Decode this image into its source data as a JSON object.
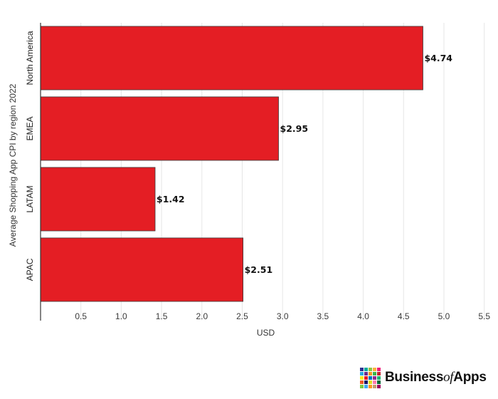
{
  "chart_data": {
    "type": "bar",
    "orientation": "horizontal",
    "categories": [
      "North America",
      "EMEA",
      "LATAM",
      "APAC"
    ],
    "values": [
      4.74,
      2.95,
      1.42,
      2.51
    ],
    "value_labels": [
      "$4.74",
      "$2.95",
      "$1.42",
      "$2.51"
    ],
    "title": "",
    "xlabel": "USD",
    "ylabel": "Average Shopping App CPI by region 2022",
    "xlim": [
      0,
      5.6
    ],
    "x_ticks": [
      0.5,
      1.0,
      1.5,
      2.0,
      2.5,
      3.0,
      3.5,
      4.0,
      4.5,
      5.0,
      5.5
    ],
    "x_tick_labels": [
      "0.5",
      "1.0",
      "1.5",
      "2.0",
      "2.5",
      "3.0",
      "3.5",
      "4.0",
      "4.5",
      "5.0",
      "5.5"
    ],
    "grid": true,
    "legend": "none",
    "bar_color": "#e41e24",
    "bar_edge_color": "#3a3a3a"
  },
  "branding": {
    "logo_bold": "Business",
    "logo_italic": "of",
    "logo_end": "Apps"
  },
  "logo_colors": [
    "#2e3192",
    "#00a99d",
    "#8cc63f",
    "#fbb03b",
    "#ed1e79",
    "#29abe2",
    "#662d91",
    "#f7931e",
    "#39b54a",
    "#c1272d",
    "#fcee21",
    "#ed1c24",
    "#0071bc",
    "#93278f",
    "#22b573",
    "#f15a24",
    "#1b1464",
    "#d9e021",
    "#ff7bac",
    "#006837",
    "#7ac943",
    "#3fa9f5",
    "#ff931e",
    "#c69c6d",
    "#9e005d"
  ]
}
